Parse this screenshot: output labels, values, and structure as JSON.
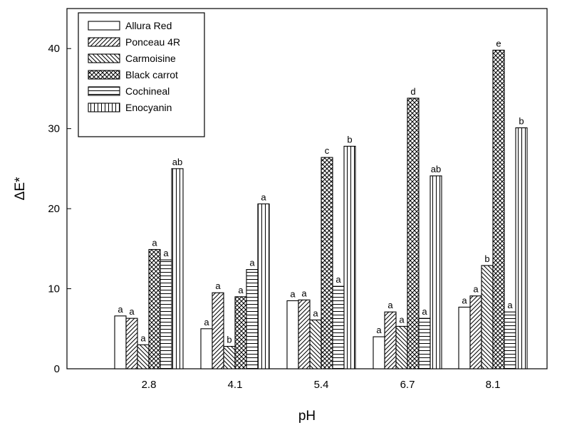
{
  "chart_data": {
    "type": "bar",
    "title": "",
    "xlabel": "pH",
    "ylabel": "ΔE*",
    "ylim": [
      0,
      45
    ],
    "yticks": [
      0,
      10,
      20,
      30,
      40
    ],
    "grid": false,
    "legend_position": "top-left",
    "categories": [
      "2.8",
      "4.1",
      "5.4",
      "6.7",
      "8.1"
    ],
    "series": [
      {
        "name": "Allura Red",
        "pattern": "empty",
        "values": [
          6.6,
          5.0,
          8.5,
          4.0,
          7.7
        ],
        "labels": [
          "a",
          "a",
          "a",
          "a",
          "a"
        ]
      },
      {
        "name": "Ponceau 4R",
        "pattern": "diagonal-up",
        "values": [
          6.3,
          9.5,
          8.6,
          7.1,
          9.1
        ],
        "labels": [
          "a",
          "a",
          "a",
          "a",
          "a"
        ]
      },
      {
        "name": "Carmoisine",
        "pattern": "diagonal-down",
        "values": [
          3.0,
          2.8,
          6.1,
          5.3,
          12.9
        ],
        "labels": [
          "a",
          "b",
          "a",
          "a",
          "b"
        ]
      },
      {
        "name": "Black carrot",
        "pattern": "crosshatch",
        "values": [
          14.9,
          9.0,
          26.4,
          33.8,
          39.8
        ],
        "labels": [
          "a",
          "a",
          "c",
          "d",
          "e"
        ]
      },
      {
        "name": "Cochineal",
        "pattern": "horizontal",
        "values": [
          13.6,
          12.4,
          10.3,
          6.3,
          7.1
        ],
        "labels": [
          "a",
          "a",
          "a",
          "a",
          "a"
        ]
      },
      {
        "name": "Enocyanin",
        "pattern": "vertical",
        "values": [
          25.0,
          20.6,
          27.8,
          24.1,
          30.1
        ],
        "labels": [
          "ab",
          "a",
          "b",
          "ab",
          "b"
        ]
      }
    ]
  }
}
